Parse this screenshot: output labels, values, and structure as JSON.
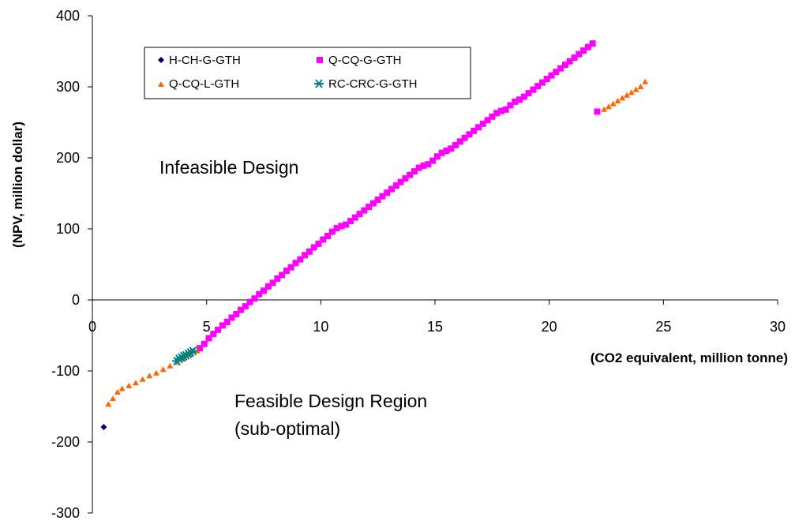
{
  "chart_data": {
    "type": "scatter",
    "title": "",
    "xlabel": "(CO2 equivalent, million tonne)",
    "ylabel": "(NPV, million dollar)",
    "xlim": [
      0,
      30
    ],
    "ylim": [
      -300,
      400
    ],
    "x_ticks": [
      0,
      5,
      10,
      15,
      20,
      25,
      30
    ],
    "y_ticks": [
      -300,
      -200,
      -100,
      0,
      100,
      200,
      300,
      400
    ],
    "grid": false,
    "legend_position": "top-left",
    "annotations": [
      {
        "text": "Infeasible Design",
        "x": 3,
        "y": 185
      },
      {
        "text": "Feasible Design Region",
        "x": 6.4,
        "y": -140
      },
      {
        "text": "(sub-optimal)",
        "x": 6.4,
        "y": -178
      }
    ],
    "series": [
      {
        "name": "H-CH-G-GTH",
        "marker": "diamond",
        "color": "#000080",
        "x": [
          0.5
        ],
        "y": [
          -179
        ]
      },
      {
        "name": "Q-CQ-G-GTH",
        "marker": "square",
        "color": "#ff00ff",
        "x": [
          4.7,
          4.9,
          5.1,
          5.3,
          5.5,
          5.7,
          5.9,
          6.1,
          6.3,
          6.5,
          6.7,
          6.9,
          7.1,
          7.3,
          7.5,
          7.7,
          7.9,
          8.1,
          8.3,
          8.5,
          8.7,
          8.9,
          9.1,
          9.3,
          9.5,
          9.7,
          9.9,
          10.1,
          10.3,
          10.5,
          10.7,
          10.9,
          11.1,
          11.3,
          11.5,
          11.7,
          11.9,
          12.1,
          12.3,
          12.5,
          12.7,
          12.9,
          13.1,
          13.3,
          13.5,
          13.7,
          13.9,
          14.1,
          14.3,
          14.5,
          14.7,
          14.9,
          15.1,
          15.3,
          15.5,
          15.7,
          15.9,
          16.1,
          16.3,
          16.5,
          16.7,
          16.9,
          17.1,
          17.3,
          17.5,
          17.7,
          17.9,
          18.1,
          18.3,
          18.5,
          18.7,
          18.9,
          19.1,
          19.3,
          19.5,
          19.7,
          19.9,
          20.1,
          20.3,
          20.5,
          20.7,
          20.9,
          21.1,
          21.3,
          21.5,
          21.7,
          21.9,
          22.1
        ],
        "y": [
          -68,
          -62,
          -54,
          -48,
          -42,
          -36,
          -31,
          -25,
          -20,
          -14,
          -9,
          -3,
          2,
          8,
          13,
          19,
          24,
          30,
          35,
          41,
          46,
          52,
          57,
          63,
          68,
          74,
          79,
          85,
          90,
          96,
          101,
          104,
          106,
          111,
          116,
          121,
          126,
          131,
          136,
          141,
          146,
          151,
          156,
          161,
          166,
          171,
          176,
          181,
          186,
          189,
          191,
          196,
          202,
          207,
          210,
          213,
          218,
          223,
          228,
          233,
          238,
          243,
          248,
          253,
          258,
          263,
          266,
          268,
          274,
          279,
          282,
          286,
          291,
          296,
          301,
          306,
          311,
          316,
          321,
          326,
          331,
          336,
          341,
          346,
          351,
          356,
          361,
          265
        ],
        "y_note": ""
      },
      {
        "name": "Q-CQ-L-GTH",
        "marker": "triangle",
        "color": "#ff6600",
        "x": [
          0.7,
          0.9,
          1.1,
          1.3,
          1.6,
          1.9,
          2.2,
          2.5,
          2.8,
          3.1,
          3.4,
          3.7,
          4.0,
          4.3,
          4.6,
          22.4,
          22.6,
          22.8,
          23.0,
          23.2,
          23.4,
          23.6,
          23.8,
          24.0,
          24.2
        ],
        "y": [
          -147,
          -139,
          -130,
          -125,
          -121,
          -117,
          -112,
          -107,
          -103,
          -98,
          -93,
          -88,
          -83,
          -77,
          -72,
          268,
          272,
          276,
          280,
          284,
          288,
          292,
          296,
          300,
          307
        ]
      },
      {
        "name": "RC-CRC-G-GTH",
        "marker": "asterisk",
        "color": "#008080",
        "x": [
          3.7,
          3.8,
          3.9,
          4.0,
          4.1,
          4.2,
          4.3,
          4.4
        ],
        "y": [
          -86,
          -83,
          -81,
          -79,
          -78,
          -76,
          -74,
          -72
        ]
      }
    ]
  }
}
